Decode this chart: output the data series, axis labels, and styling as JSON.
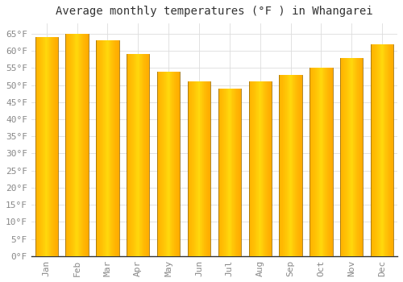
{
  "title": "Average monthly temperatures (°F ) in Whangarei",
  "months": [
    "Jan",
    "Feb",
    "Mar",
    "Apr",
    "May",
    "Jun",
    "Jul",
    "Aug",
    "Sep",
    "Oct",
    "Nov",
    "Dec"
  ],
  "values": [
    64,
    65,
    63,
    59,
    54,
    51,
    49,
    51,
    53,
    55,
    58,
    62
  ],
  "bar_color_left": "#FFB300",
  "bar_color_center": "#FFCA28",
  "bar_color_right": "#FB8C00",
  "bar_edge_color": "#B8860B",
  "background_color": "#FFFFFF",
  "grid_color": "#DDDDDD",
  "ylim": [
    0,
    68
  ],
  "yticks": [
    0,
    5,
    10,
    15,
    20,
    25,
    30,
    35,
    40,
    45,
    50,
    55,
    60,
    65
  ],
  "title_fontsize": 10,
  "tick_fontsize": 8,
  "font_family": "monospace",
  "label_color": "#888888",
  "title_color": "#333333"
}
